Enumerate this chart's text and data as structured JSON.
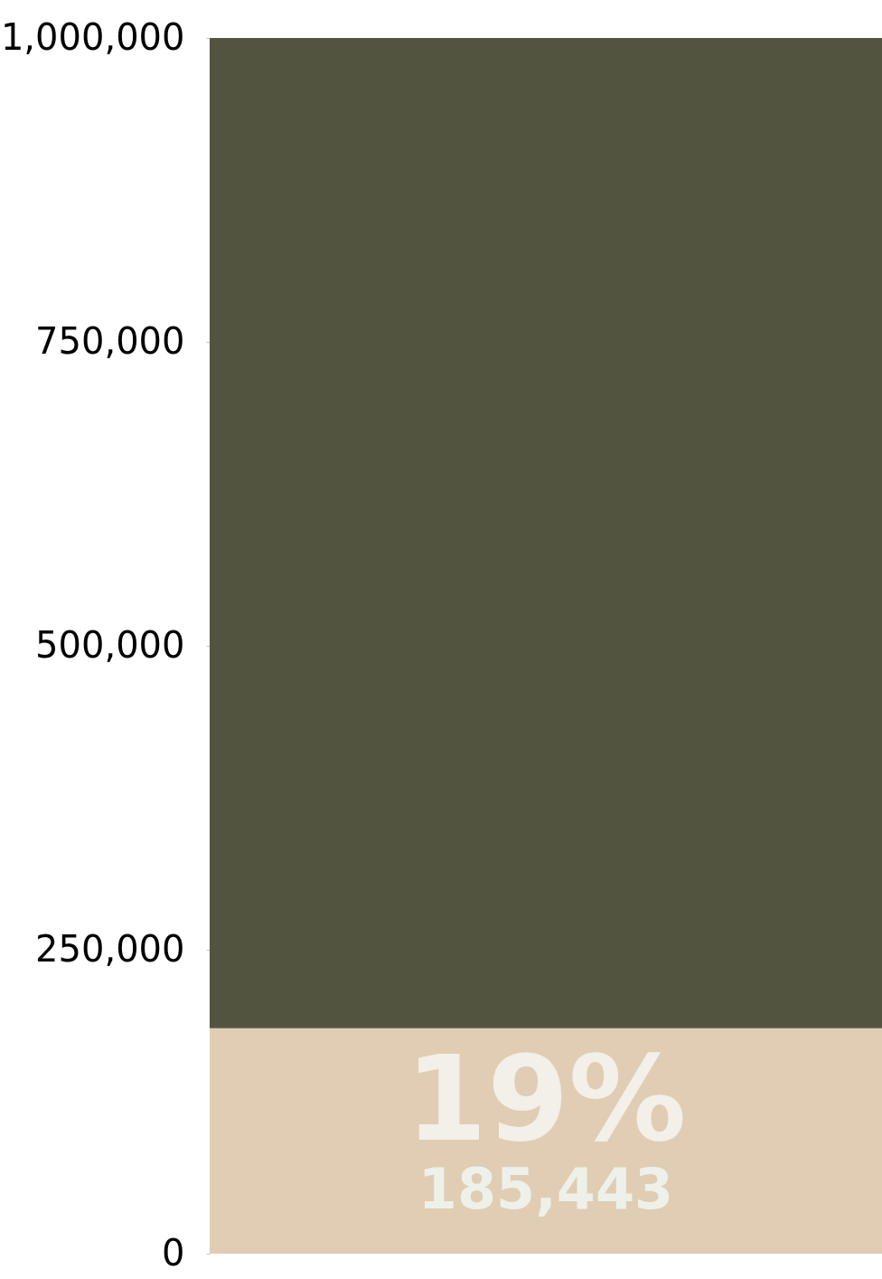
{
  "chart_data": {
    "type": "bar",
    "stacked": true,
    "categories": [
      null
    ],
    "series": [
      {
        "color": "#e0cdb3",
        "values": [
          185443
        ],
        "value_labels": [
          "185,443"
        ]
      },
      {
        "color": "#525440",
        "values": [
          814500
        ]
      }
    ],
    "annotations": [
      "19%"
    ],
    "ylim": [
      0,
      1000000
    ],
    "yticks": [
      0,
      {
        "value": 250000,
        "label": "250,000"
      },
      {
        "value": 500000,
        "label": "500,000"
      },
      {
        "value": 750000,
        "label": "750,000"
      },
      {
        "value": 1000000,
        "label": "1,000,000"
      }
    ],
    "tick_labels": "y"
  }
}
